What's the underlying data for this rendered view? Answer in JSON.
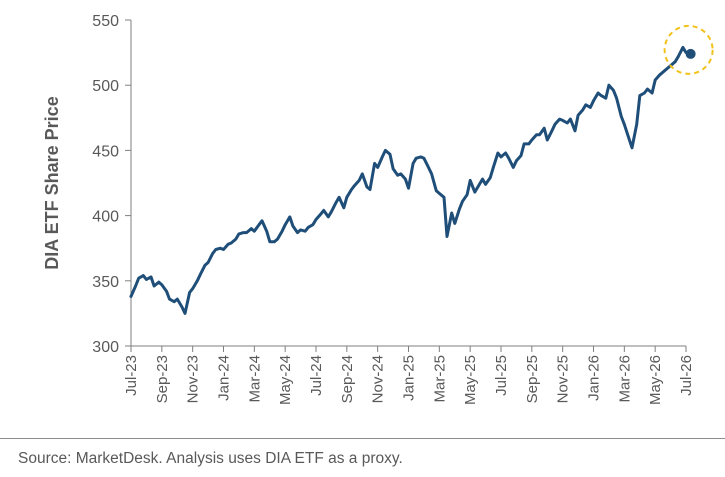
{
  "footer": {
    "source": "Source: MarketDesk. Analysis uses DIA ETF as a proxy."
  },
  "colors": {
    "line": "#1f4e79",
    "axis": "#7f7f7f",
    "text": "#595959",
    "highlight": "#f2c21b"
  },
  "chart_data": {
    "type": "line",
    "title": "",
    "xlabel": "",
    "ylabel": "DIA ETF Share Price",
    "ylim": [
      300,
      550
    ],
    "yticks": [
      300,
      350,
      400,
      450,
      500,
      550
    ],
    "xticks": [
      "Jul-23",
      "Sep-23",
      "Nov-23",
      "Jan-24",
      "Mar-24",
      "May-24",
      "Jul-24",
      "Sep-24",
      "Nov-24",
      "Jan-25",
      "Mar-25",
      "May-25",
      "Jul-25",
      "Sep-25",
      "Nov-25",
      "Jan-26",
      "Mar-26",
      "May-26",
      "Jul-26"
    ],
    "grid": false,
    "legend": "none",
    "highlight": {
      "marker": "dashed-circle",
      "at_last_point": true
    },
    "series": [
      {
        "x": [
          0.0,
          0.3,
          0.5,
          0.8,
          1.0,
          1.3,
          1.5,
          1.8,
          2.0,
          2.3,
          2.5,
          2.8,
          3.0,
          3.3,
          3.5,
          3.8,
          4.0,
          4.3,
          4.5,
          4.8,
          5.0,
          5.3,
          5.5,
          5.8,
          6.0,
          6.3,
          6.5,
          6.8,
          7.0,
          7.3,
          7.5,
          7.8,
          8.0,
          8.3,
          8.5,
          8.8,
          9.0,
          9.3,
          9.5,
          9.8,
          10.0,
          10.3,
          10.5,
          10.8,
          11.0,
          11.3,
          11.5,
          11.8,
          12.0,
          12.3,
          12.5,
          12.8,
          13.0,
          13.3,
          13.5,
          13.8,
          14.0,
          14.3,
          14.5,
          14.8,
          15.0,
          15.3,
          15.5,
          15.8,
          16.0,
          16.3,
          16.5,
          16.8,
          17.0,
          17.3,
          17.5,
          17.8,
          18.0,
          18.3,
          18.5,
          18.8,
          19.0,
          19.3,
          19.5,
          19.8,
          20.0,
          20.3,
          20.5,
          20.8,
          21.0,
          21.3,
          21.5,
          21.8,
          22.0,
          22.3,
          22.5,
          22.8,
          23.0,
          23.3,
          23.5,
          23.8,
          24.0,
          24.3,
          24.5,
          24.8,
          25.0,
          25.3,
          25.5,
          25.8,
          26.0,
          26.3,
          26.5,
          26.8,
          27.0,
          27.3,
          27.5,
          27.8,
          28.0,
          28.3,
          28.5,
          28.8,
          29.0,
          29.3,
          29.5,
          29.8,
          30.0,
          30.3,
          30.5,
          30.8,
          31.0,
          31.3,
          31.5,
          31.8,
          32.0,
          32.3,
          32.5,
          32.8,
          33.0,
          33.3,
          33.5,
          33.8,
          34.0,
          34.3,
          34.5,
          34.8,
          35.0,
          35.3,
          35.5,
          35.8,
          36.0,
          36.3
        ],
        "values": [
          338,
          346,
          352,
          354,
          351,
          353,
          346,
          349,
          347,
          342,
          336,
          334,
          336,
          330,
          325,
          341,
          344,
          350,
          355,
          362,
          364,
          371,
          374,
          375,
          374,
          378,
          379,
          382,
          386,
          387,
          387,
          390,
          388,
          393,
          396,
          388,
          380,
          380,
          382,
          388,
          393,
          399,
          392,
          387,
          389,
          388,
          391,
          393,
          397,
          401,
          404,
          399,
          403,
          410,
          414,
          406,
          414,
          420,
          423,
          427,
          432,
          422,
          420,
          440,
          437,
          445,
          450,
          447,
          436,
          431,
          432,
          428,
          421,
          440,
          444,
          445,
          444,
          437,
          432,
          419,
          417,
          414,
          384,
          402,
          394,
          405,
          411,
          416,
          427,
          418,
          422,
          428,
          424,
          429,
          437,
          448,
          445,
          448,
          444,
          437,
          442,
          446,
          455,
          455,
          458,
          462,
          462,
          467,
          458,
          465,
          470,
          474,
          473,
          471,
          474,
          465,
          477,
          481,
          485,
          483,
          488,
          494,
          492,
          490,
          500,
          496,
          490,
          476,
          470,
          459,
          452,
          470,
          492,
          494,
          497,
          494,
          504,
          508,
          510,
          513,
          515,
          518,
          522,
          529,
          525,
          524
        ]
      }
    ]
  }
}
